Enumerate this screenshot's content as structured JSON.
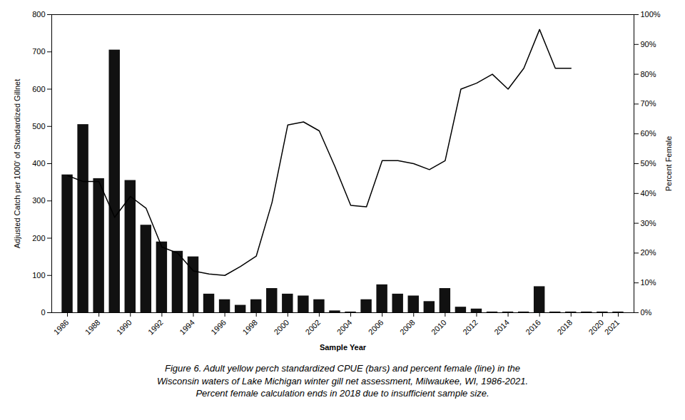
{
  "chart_data": {
    "type": "bar",
    "x": [
      1986,
      1987,
      1988,
      1989,
      1990,
      1991,
      1992,
      1993,
      1994,
      1995,
      1996,
      1997,
      1998,
      1999,
      2000,
      2001,
      2002,
      2003,
      2004,
      2005,
      2006,
      2007,
      2008,
      2009,
      2010,
      2011,
      2012,
      2013,
      2014,
      2015,
      2016,
      2017,
      2018,
      2019,
      2020,
      2021
    ],
    "xlabel": "Sample Year",
    "ylabel": "Adjusted Catch per 1000' of Standardized Gillnet",
    "y2label": "Percent Female",
    "xlim": [
      1985,
      2022
    ],
    "xticks": [
      1986,
      1988,
      1990,
      1992,
      1994,
      1996,
      1998,
      2000,
      2002,
      2004,
      2006,
      2008,
      2010,
      2012,
      2014,
      2016,
      2018,
      2020,
      2021
    ],
    "ylim": [
      0,
      800
    ],
    "yticks": [
      0,
      100,
      200,
      300,
      400,
      500,
      600,
      700,
      800
    ],
    "y2lim": [
      0,
      100
    ],
    "y2ticks": [
      {
        "value": 0,
        "label": "0%"
      },
      {
        "value": 10,
        "label": "10%"
      },
      {
        "value": 20,
        "label": "20%"
      },
      {
        "value": 30,
        "label": "30%"
      },
      {
        "value": 40,
        "label": "40%"
      },
      {
        "value": 50,
        "label": "50%"
      },
      {
        "value": 60,
        "label": "60%"
      },
      {
        "value": 70,
        "label": "70%"
      },
      {
        "value": 80,
        "label": "80%"
      },
      {
        "value": 90,
        "label": "90%"
      },
      {
        "value": 100,
        "label": "100%"
      }
    ],
    "grid": false,
    "series": [
      {
        "type": "bar",
        "color": "#111111",
        "values": [
          370,
          505,
          360,
          705,
          355,
          235,
          190,
          165,
          150,
          50,
          35,
          20,
          35,
          65,
          50,
          45,
          35,
          5,
          2,
          35,
          75,
          50,
          45,
          30,
          65,
          15,
          10,
          2,
          2,
          2,
          70,
          2,
          2,
          2,
          2,
          2
        ]
      },
      {
        "type": "line",
        "axis": "y2",
        "color": "#000000",
        "values": [
          46,
          44,
          44,
          32,
          39,
          35,
          22,
          20,
          14,
          13,
          12.5,
          15.5,
          19,
          37,
          63,
          64,
          61,
          49,
          36,
          35.5,
          51,
          51,
          50,
          48,
          51,
          75,
          77,
          80,
          75,
          82,
          95,
          82,
          82,
          null,
          null,
          null
        ]
      }
    ],
    "caption": [
      "Figure 6. Adult yellow perch standardized CPUE (bars) and percent female (line) in the",
      "Wisconsin waters of Lake Michigan winter gill net assessment, Milwaukee, WI, 1986-2021.",
      "Percent female calculation ends in 2018 due to insufficient sample size."
    ]
  }
}
